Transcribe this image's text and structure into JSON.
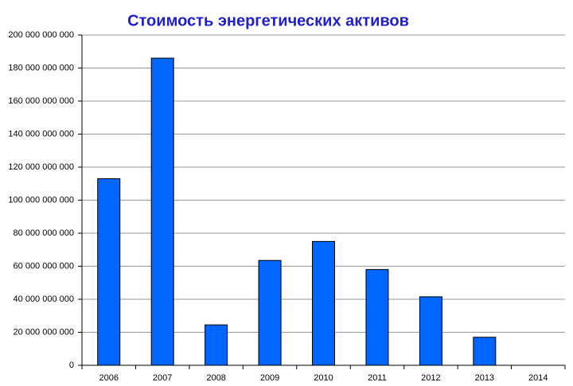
{
  "chart_data": {
    "type": "bar",
    "title": "Стоимость энергетических активов",
    "categories": [
      "2006",
      "2007",
      "2008",
      "2009",
      "2010",
      "2011",
      "2012",
      "2013",
      "2014"
    ],
    "values": [
      113000000000,
      186000000000,
      24500000000,
      63500000000,
      75000000000,
      58000000000,
      41500000000,
      17000000000,
      null
    ],
    "color": "#0066ff",
    "ylim": [
      0,
      200000000000
    ],
    "yticks": [
      0,
      {
        "value": 20000000000,
        "label": "20 000 000 000"
      },
      {
        "value": 40000000000,
        "label": "40 000 000 000"
      },
      {
        "value": 60000000000,
        "label": "60 000 000 000"
      },
      {
        "value": 80000000000,
        "label": "80 000 000 000"
      },
      {
        "value": 100000000000,
        "label": "100 000 000 000"
      },
      {
        "value": 120000000000,
        "label": "120 000 000 000"
      },
      {
        "value": 140000000000,
        "label": "140 000 000 000"
      },
      {
        "value": 160000000000,
        "label": "160 000 000 000"
      },
      {
        "value": 180000000000,
        "label": "180 000 000 000"
      },
      {
        "value": 200000000000,
        "label": "200 000 000 000"
      }
    ],
    "grid": true
  }
}
